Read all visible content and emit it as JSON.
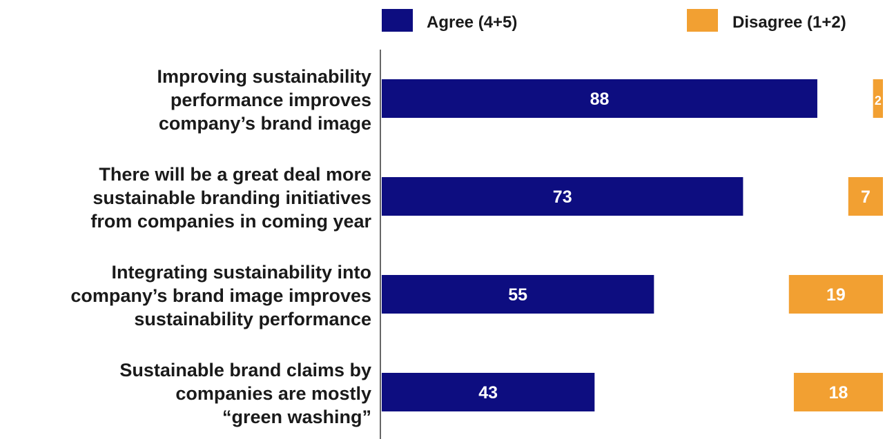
{
  "chart_data": {
    "type": "bar",
    "orientation": "horizontal",
    "categories": [
      [
        "Improving sustainability",
        "performance improves",
        "company’s brand image"
      ],
      [
        "There will be a great deal more",
        "sustainable branding initiatives",
        "from companies in coming year"
      ],
      [
        "Integrating sustainability into",
        "company’s brand image improves",
        "sustainability performance"
      ],
      [
        "Sustainable brand claims by",
        "companies are mostly",
        "“green washing”"
      ]
    ],
    "series": [
      {
        "name": "Agree (4+5)",
        "values": [
          88,
          73,
          55,
          43
        ],
        "color": "#0d0d80",
        "align": "left"
      },
      {
        "name": "Disagree (1+2)",
        "values": [
          2,
          7,
          19,
          18
        ],
        "color": "#f2a032",
        "align": "right"
      }
    ],
    "xlim": [
      0,
      100
    ],
    "grid": false,
    "legend": "top"
  }
}
